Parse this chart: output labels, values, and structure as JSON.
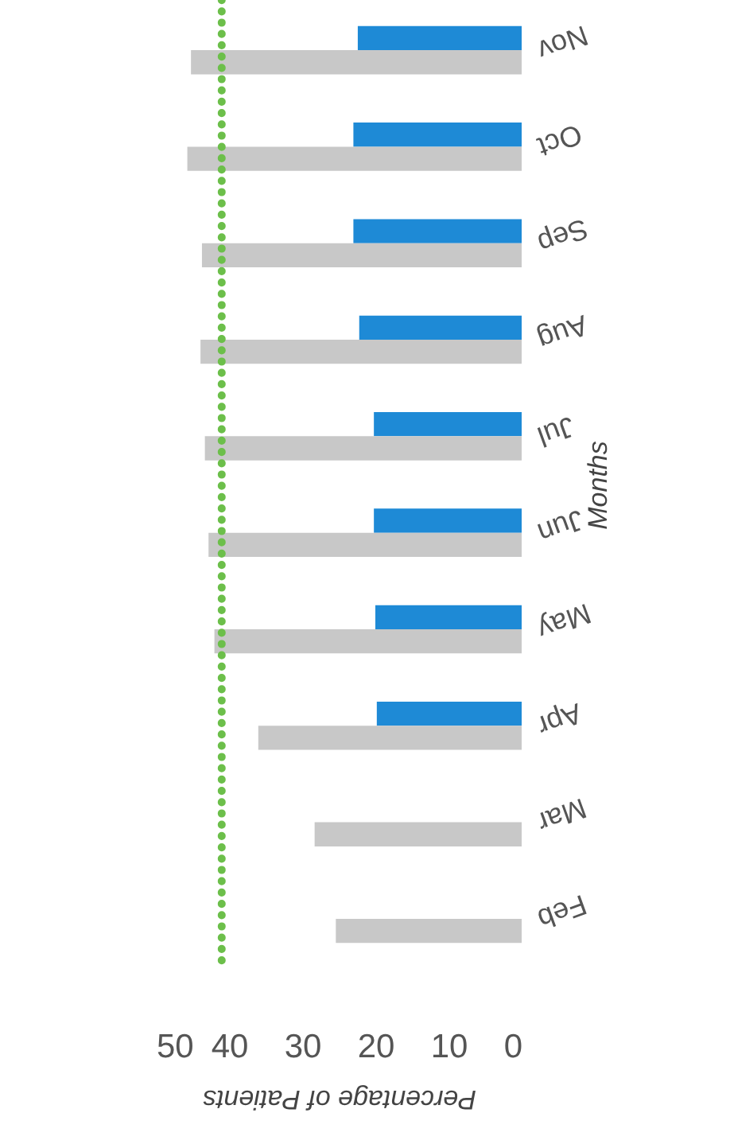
{
  "chart_data": {
    "type": "bar",
    "orientation": "horizontal",
    "xlabel": "Percentage of Patients",
    "ylabel": "Months",
    "categories": [
      "Nov",
      "Oct",
      "Sep",
      "Aug",
      "Jul",
      "Jun",
      "May",
      "Apr",
      "Mar",
      "Feb"
    ],
    "series": [
      {
        "color": "#1e8ad6",
        "values": [
          22.4,
          23,
          23,
          22.2,
          20.2,
          20.2,
          20,
          19.8,
          null,
          null
        ]
      },
      {
        "color": "#c8c8c8",
        "values": [
          45.2,
          45.7,
          43.7,
          43.9,
          43.3,
          42.8,
          42,
          36,
          28.3,
          25.4
        ]
      }
    ],
    "xlim": [
      50,
      0
    ],
    "xticks": [
      50,
      40,
      30,
      20,
      10,
      0
    ],
    "ref_lines": [
      {
        "axis": "x",
        "value": 41,
        "color": "#6cbf4a",
        "line_style": "dotted"
      }
    ],
    "grid": false
  }
}
